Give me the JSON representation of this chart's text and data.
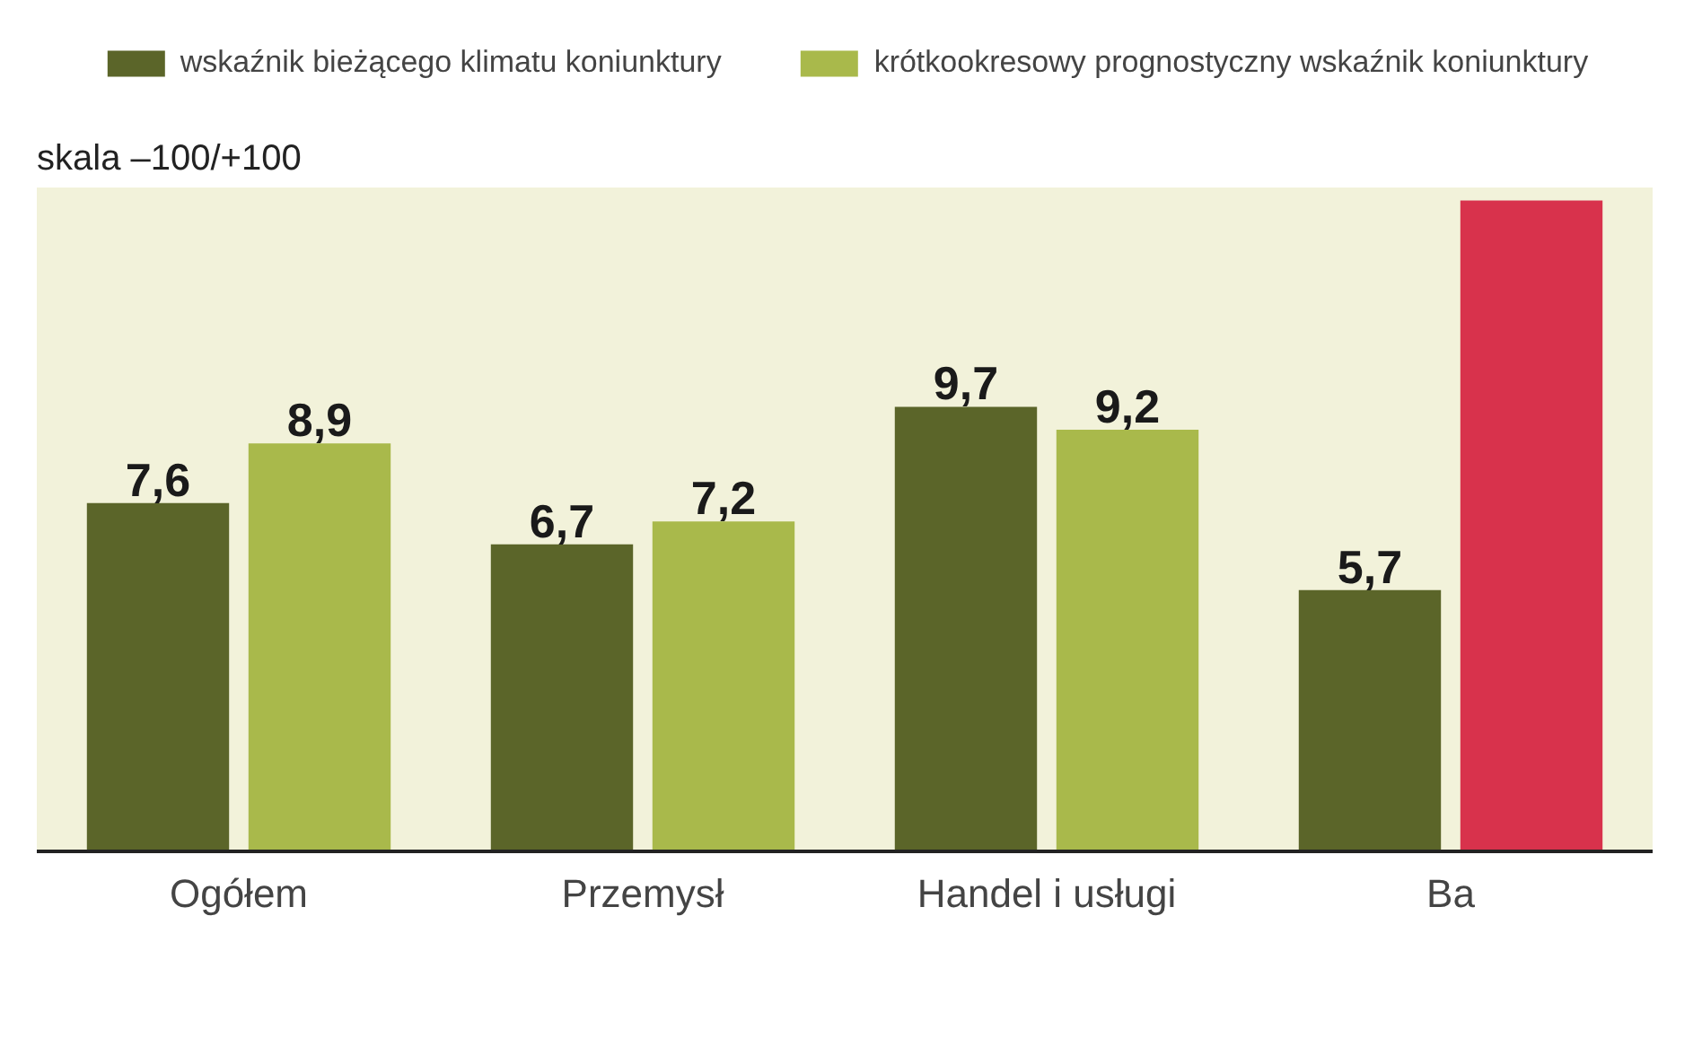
{
  "chart_data": {
    "type": "bar",
    "subtitle": "skala –100/+100",
    "categories": [
      "Ogółem",
      "Przemysł",
      "Handel i usługi",
      "Ba"
    ],
    "series": [
      {
        "name": "wskaźnik bieżącego klimatu koniunktury",
        "color": "#5b6529",
        "values": [
          7.6,
          6.7,
          9.7,
          5.7
        ],
        "value_labels": [
          "7,6",
          "6,7",
          "9,7",
          "5,7"
        ]
      },
      {
        "name": "krótkookresowy prognostyczny wskaźnik koniunktury",
        "color": "#a9b94b",
        "colors": [
          "#a9b94b",
          "#a9b94b",
          "#a9b94b",
          "#d8324c"
        ],
        "values": [
          8.9,
          7.2,
          9.2,
          14.2
        ],
        "value_labels": [
          "8,9",
          "7,2",
          "9,2",
          null
        ]
      }
    ],
    "legend": "top"
  }
}
